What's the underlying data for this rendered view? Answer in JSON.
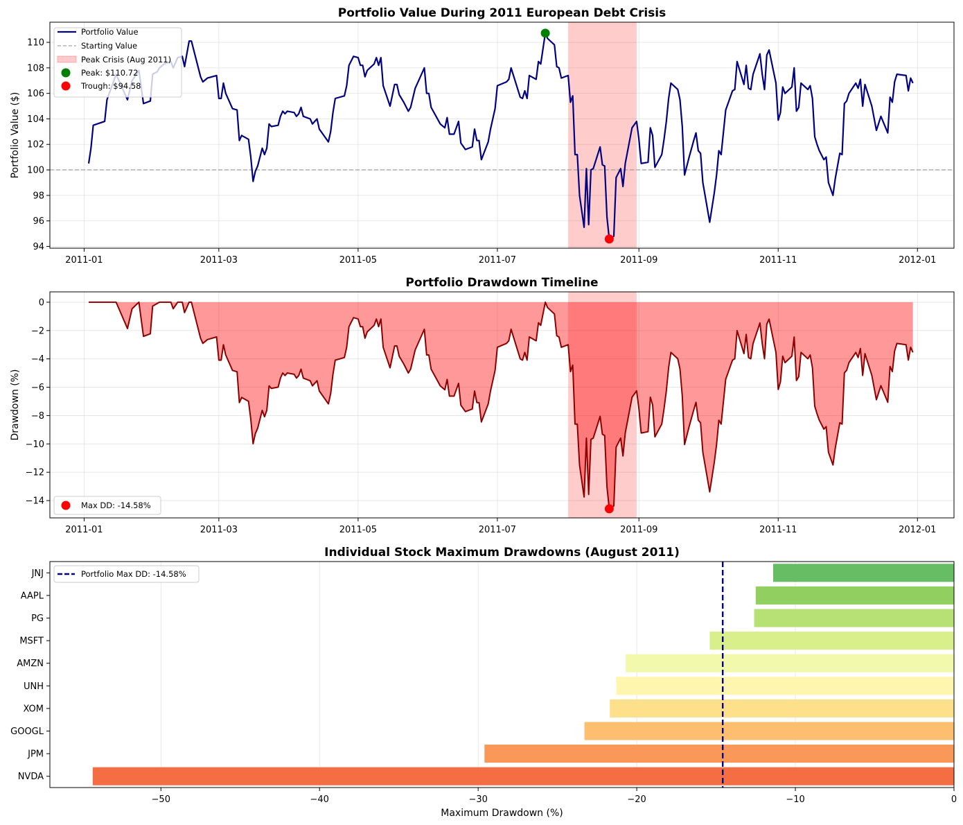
{
  "chart_data": [
    {
      "type": "line",
      "title": "Portfolio Value During 2011 European Debt Crisis",
      "xlabel": "",
      "ylabel": "Portfolio Value ($)",
      "xlim": [
        "2010-12-17",
        "2012-01-17"
      ],
      "ylim": [
        93.86,
        111.58
      ],
      "xtick_labels": [
        "2011-01",
        "2011-03",
        "2011-05",
        "2011-07",
        "2011-09",
        "2011-11",
        "2012-01"
      ],
      "xtick_dates": [
        "2011-01-01",
        "2011-03-01",
        "2011-05-01",
        "2011-07-01",
        "2011-09-01",
        "2011-11-01",
        "2012-01-01"
      ],
      "yticks": [
        94,
        96,
        98,
        100,
        102,
        104,
        106,
        108,
        110
      ],
      "ytick_labels": [
        "94",
        "96",
        "98",
        "100",
        "102",
        "104",
        "106",
        "108",
        "110"
      ],
      "grid": true,
      "legend_placement": "top-left",
      "legend": [
        "Portfolio Value",
        "Starting Value",
        "Peak Crisis (Aug 2011)",
        "Peak: $110.72",
        "Trough: $94.58"
      ],
      "colors": {
        "line": "#000080",
        "start": "#999999",
        "crisis": "#ff0000",
        "peak": "#008000",
        "trough": "#ff0000"
      },
      "starting_value": 100,
      "crisis_span": [
        "2011-08-01",
        "2011-08-31"
      ],
      "peak": {
        "date": "2011-07-22",
        "value": 110.72
      },
      "trough": {
        "date": "2011-08-19",
        "value": 94.58
      },
      "series": {
        "dates": [
          "2011-01-03",
          "2011-01-04",
          "2011-01-05",
          "2011-01-10",
          "2011-01-11",
          "2011-01-15",
          "2011-01-20",
          "2011-01-22",
          "2011-01-25",
          "2011-01-27",
          "2011-01-30",
          "2011-01-31",
          "2011-02-02",
          "2011-02-03",
          "2011-02-05",
          "2011-02-08",
          "2011-02-09",
          "2011-02-11",
          "2011-02-13",
          "2011-02-14",
          "2011-02-16",
          "2011-02-17",
          "2011-02-21",
          "2011-02-22",
          "2011-02-24",
          "2011-02-28",
          "2011-03-01",
          "2011-03-02",
          "2011-03-03",
          "2011-03-04",
          "2011-03-07",
          "2011-03-09",
          "2011-03-10",
          "2011-03-11",
          "2011-03-14",
          "2011-03-15",
          "2011-03-16",
          "2011-03-17",
          "2011-03-18",
          "2011-03-19",
          "2011-03-20",
          "2011-03-21",
          "2011-03-22",
          "2011-03-23",
          "2011-03-24",
          "2011-03-27",
          "2011-03-28",
          "2011-03-29",
          "2011-03-30",
          "2011-03-31",
          "2011-04-03",
          "2011-04-04",
          "2011-04-05",
          "2011-04-06",
          "2011-04-07",
          "2011-04-10",
          "2011-04-11",
          "2011-04-13",
          "2011-04-14",
          "2011-04-18",
          "2011-04-19",
          "2011-04-20",
          "2011-04-21",
          "2011-04-25",
          "2011-04-26",
          "2011-04-27",
          "2011-04-29",
          "2011-05-01",
          "2011-05-02",
          "2011-05-03",
          "2011-05-04",
          "2011-05-05",
          "2011-05-08",
          "2011-05-09",
          "2011-05-10",
          "2011-05-11",
          "2011-05-12",
          "2011-05-15",
          "2011-05-17",
          "2011-05-18",
          "2011-05-19",
          "2011-05-21",
          "2011-05-23",
          "2011-05-24",
          "2011-05-26",
          "2011-05-30",
          "2011-05-31",
          "2011-06-01",
          "2011-06-02",
          "2011-06-06",
          "2011-06-08",
          "2011-06-09",
          "2011-06-10",
          "2011-06-12",
          "2011-06-14",
          "2011-06-15",
          "2011-06-17",
          "2011-06-20",
          "2011-06-21",
          "2011-06-22",
          "2011-06-23",
          "2011-06-24",
          "2011-06-27",
          "2011-06-28",
          "2011-06-29",
          "2011-06-30",
          "2011-07-01",
          "2011-07-05",
          "2011-07-06",
          "2011-07-07",
          "2011-07-11",
          "2011-07-12",
          "2011-07-13",
          "2011-07-14",
          "2011-07-15",
          "2011-07-18",
          "2011-07-19",
          "2011-07-20",
          "2011-07-22",
          "2011-07-23",
          "2011-07-26",
          "2011-07-27",
          "2011-07-28",
          "2011-07-29",
          "2011-08-01",
          "2011-08-02",
          "2011-08-03",
          "2011-08-04",
          "2011-08-05",
          "2011-08-06",
          "2011-08-08",
          "2011-08-09",
          "2011-08-10",
          "2011-08-11",
          "2011-08-12",
          "2011-08-15",
          "2011-08-16",
          "2011-08-17",
          "2011-08-18",
          "2011-08-19",
          "2011-08-21",
          "2011-08-22",
          "2011-08-24",
          "2011-08-25",
          "2011-08-26",
          "2011-08-29",
          "2011-08-31",
          "2011-09-01",
          "2011-09-02",
          "2011-09-05",
          "2011-09-06",
          "2011-09-07",
          "2011-09-08",
          "2011-09-11",
          "2011-09-12",
          "2011-09-13",
          "2011-09-14",
          "2011-09-15",
          "2011-09-18",
          "2011-09-19",
          "2011-09-20",
          "2011-09-21",
          "2011-09-23",
          "2011-09-25",
          "2011-09-26",
          "2011-09-27",
          "2011-09-28",
          "2011-09-29",
          "2011-10-02",
          "2011-10-04",
          "2011-10-05",
          "2011-10-06",
          "2011-10-07",
          "2011-10-09",
          "2011-10-10",
          "2011-10-12",
          "2011-10-13",
          "2011-10-14",
          "2011-10-17",
          "2011-10-18",
          "2011-10-19",
          "2011-10-20",
          "2011-10-21",
          "2011-10-24",
          "2011-10-25",
          "2011-10-26",
          "2011-10-27",
          "2011-10-28",
          "2011-10-31",
          "2011-11-01",
          "2011-11-02",
          "2011-11-03",
          "2011-11-04",
          "2011-11-07",
          "2011-11-08",
          "2011-11-09",
          "2011-11-10",
          "2011-11-11",
          "2011-11-14",
          "2011-11-15",
          "2011-11-16",
          "2011-11-17",
          "2011-11-18",
          "2011-11-19",
          "2011-11-21",
          "2011-11-22",
          "2011-11-23",
          "2011-11-25",
          "2011-11-26",
          "2011-11-28",
          "2011-11-29",
          "2011-11-30",
          "2011-12-01",
          "2011-12-02",
          "2011-12-05",
          "2011-12-06",
          "2011-12-07",
          "2011-12-08",
          "2011-12-09",
          "2011-12-12",
          "2011-12-14",
          "2011-12-16",
          "2011-12-19",
          "2011-12-20",
          "2011-12-21",
          "2011-12-22",
          "2011-12-23",
          "2011-12-27",
          "2011-12-28",
          "2011-12-29",
          "2011-12-30"
        ],
        "values": [
          100.5,
          101.7,
          103.5,
          103.8,
          105.5,
          107.5,
          105.5,
          107.0,
          107.8,
          105.2,
          105.4,
          107.5,
          107.7,
          108.0,
          108.3,
          108.5,
          108.0,
          108.8,
          108.9,
          108.1,
          110.1,
          110.1,
          107.3,
          106.9,
          107.2,
          107.4,
          105.6,
          105.6,
          106.8,
          106.0,
          104.8,
          104.7,
          102.3,
          102.7,
          102.4,
          101.0,
          99.1,
          99.9,
          100.3,
          101.0,
          101.7,
          101.2,
          101.7,
          103.6,
          103.4,
          103.5,
          104.2,
          104.6,
          104.4,
          104.6,
          104.5,
          104.2,
          104.4,
          104.9,
          104.2,
          104.0,
          103.6,
          104.0,
          103.2,
          102.2,
          103.0,
          104.5,
          105.6,
          105.8,
          106.6,
          108.2,
          108.9,
          108.8,
          108.2,
          108.2,
          107.3,
          107.8,
          108.3,
          108.8,
          108.2,
          108.8,
          106.6,
          105.0,
          106.7,
          106.7,
          105.9,
          105.3,
          104.6,
          104.9,
          106.4,
          108.0,
          106.0,
          106.0,
          104.9,
          103.6,
          103.3,
          104.1,
          102.8,
          102.8,
          103.8,
          102.1,
          101.6,
          101.8,
          103.2,
          102.3,
          102.3,
          100.8,
          102.2,
          103.2,
          104.0,
          104.8,
          106.6,
          106.9,
          107.1,
          108.0,
          105.7,
          105.6,
          106.2,
          105.6,
          107.4,
          107.1,
          108.5,
          108.3,
          110.72,
          110.3,
          109.8,
          108.1,
          108.0,
          107.2,
          107.4,
          105.3,
          105.8,
          101.2,
          101.2,
          98.0,
          95.5,
          100.1,
          95.7,
          100.0,
          100.1,
          101.8,
          100.4,
          100.3,
          96.3,
          94.58,
          94.8,
          99.4,
          100.1,
          98.7,
          100.5,
          103.3,
          103.8,
          102.4,
          100.5,
          100.6,
          103.3,
          102.7,
          100.2,
          101.2,
          102.4,
          103.8,
          105.6,
          106.8,
          106.3,
          105.5,
          103.4,
          99.6,
          101.0,
          102.3,
          102.9,
          101.5,
          101.3,
          99.0,
          95.9,
          98.2,
          99.6,
          101.5,
          101.2,
          104.7,
          105.2,
          106.2,
          106.3,
          108.5,
          106.7,
          108.2,
          106.4,
          106.3,
          107.5,
          109.1,
          107.5,
          106.3,
          109.0,
          109.4,
          106.8,
          103.9,
          104.5,
          106.5,
          106.0,
          106.5,
          108.0,
          104.6,
          104.9,
          106.8,
          106.3,
          106.6,
          105.6,
          102.6,
          102.0,
          101.5,
          100.8,
          101.0,
          99.0,
          98.0,
          99.3,
          101.3,
          101.2,
          105.2,
          105.4,
          106.0,
          106.8,
          106.4,
          107.1,
          105.0,
          106.7,
          105.0,
          103.1,
          104.2,
          102.9,
          105.7,
          105.3,
          106.9,
          107.5,
          107.4,
          106.2,
          107.2,
          106.8
        ]
      }
    },
    {
      "type": "area",
      "title": "Portfolio Drawdown Timeline",
      "xlabel": "",
      "ylabel": "Drawdown (%)",
      "ylim": [
        -15.22,
        0.73
      ],
      "yticks": [
        -14,
        -12,
        -10,
        -8,
        -6,
        -4,
        -2,
        0
      ],
      "ytick_labels": [
        "−14",
        "−12",
        "−10",
        "−8",
        "−6",
        "−4",
        "−2",
        "0"
      ],
      "grid": true,
      "legend_placement": "bottom-left",
      "legend": [
        "Max DD: -14.58%"
      ],
      "colors": {
        "line": "#8b0000",
        "fill": "#ff0000",
        "marker": "#ff0000"
      },
      "max_drawdown": {
        "date": "2011-08-19",
        "value": -14.58
      },
      "derived_from": "series values of chart 0 relative to running peak"
    },
    {
      "type": "bar",
      "orientation": "horizontal",
      "title": "Individual Stock Maximum Drawdowns (August 2011)",
      "xlabel": "Maximum Drawdown (%)",
      "ylabel": "",
      "xlim": [
        -57.0,
        0
      ],
      "xticks": [
        -50,
        -40,
        -30,
        -20,
        -10,
        0
      ],
      "xtick_labels": [
        "−50",
        "−40",
        "−30",
        "−20",
        "−10",
        "0"
      ],
      "grid": true,
      "legend_placement": "top-left",
      "legend": [
        "Portfolio Max DD: -14.58%"
      ],
      "reference_line": -14.58,
      "reference_color": "#000080",
      "categories": [
        "JNJ",
        "AAPL",
        "PG",
        "MSFT",
        "AMZN",
        "UNH",
        "XOM",
        "GOOGL",
        "JPM",
        "NVDA"
      ],
      "values": [
        -11.4,
        -12.5,
        -12.6,
        -15.4,
        -20.7,
        -21.3,
        -21.7,
        -23.3,
        -29.6,
        -54.3
      ],
      "bar_colors": [
        "#66bd63",
        "#91cf60",
        "#b7e075",
        "#d9ef8b",
        "#f2f9ac",
        "#fef5ae",
        "#fee08b",
        "#fdbe6f",
        "#f99858",
        "#f46d43"
      ]
    }
  ]
}
